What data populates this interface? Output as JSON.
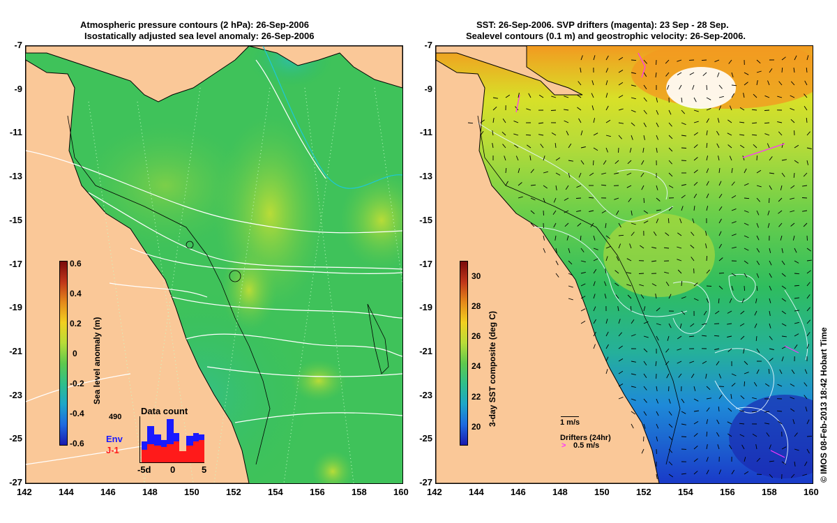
{
  "left_panel": {
    "title_line1": "Atmospheric pressure contours (2 hPa): 26-Sep-2006",
    "title_line2": "Isostatically adjusted sea level anomaly: 26-Sep-2006",
    "colorbar": {
      "title": "Sea level anomaly (m)",
      "ticks": [
        "0.6",
        "0.4",
        "0.2",
        "0",
        "-0.2",
        "-0.4",
        "-0.6"
      ],
      "range": [
        -0.6,
        0.6
      ]
    },
    "data_count": {
      "title": "Data count",
      "max_label": "490",
      "legend_env": "Env",
      "legend_j1": "J-1",
      "xticks": [
        "-5d",
        "0",
        "5"
      ],
      "env_color": "#1a1aff",
      "j1_color": "#ff1a1a"
    }
  },
  "right_panel": {
    "title_line1": "SST: 26-Sep-2006. SVP drifters (magenta): 23 Sep - 28 Sep.",
    "title_line2": "Sealevel contours (0.1 m) and geostrophic velocity: 26-Sep-2006.",
    "colorbar": {
      "title": "3-day SST composite (deg C)",
      "ticks": [
        "30",
        "28",
        "26",
        "24",
        "22",
        "20"
      ],
      "range": [
        19,
        31
      ]
    },
    "scale_label": "1 m/s",
    "drifters_label": "Drifters (24hr)",
    "drifters_scale": "0.5 m/s",
    "drifter_color": "#ff33ff"
  },
  "axes": {
    "lat_ticks": [
      "-7",
      "-9",
      "-11",
      "-13",
      "-15",
      "-17",
      "-19",
      "-21",
      "-23",
      "-25",
      "-27"
    ],
    "lon_ticks": [
      "142",
      "144",
      "146",
      "148",
      "150",
      "152",
      "154",
      "156",
      "158",
      "160"
    ],
    "lat_range": [
      -27,
      -7
    ],
    "lon_range": [
      142,
      160
    ]
  },
  "colors": {
    "land": "#fac898",
    "ocean_base": "#2fbd5e",
    "white_contour": "#ffffff"
  },
  "credit": "© IMOS 08-Feb-2013 18:42 Hobart Time"
}
